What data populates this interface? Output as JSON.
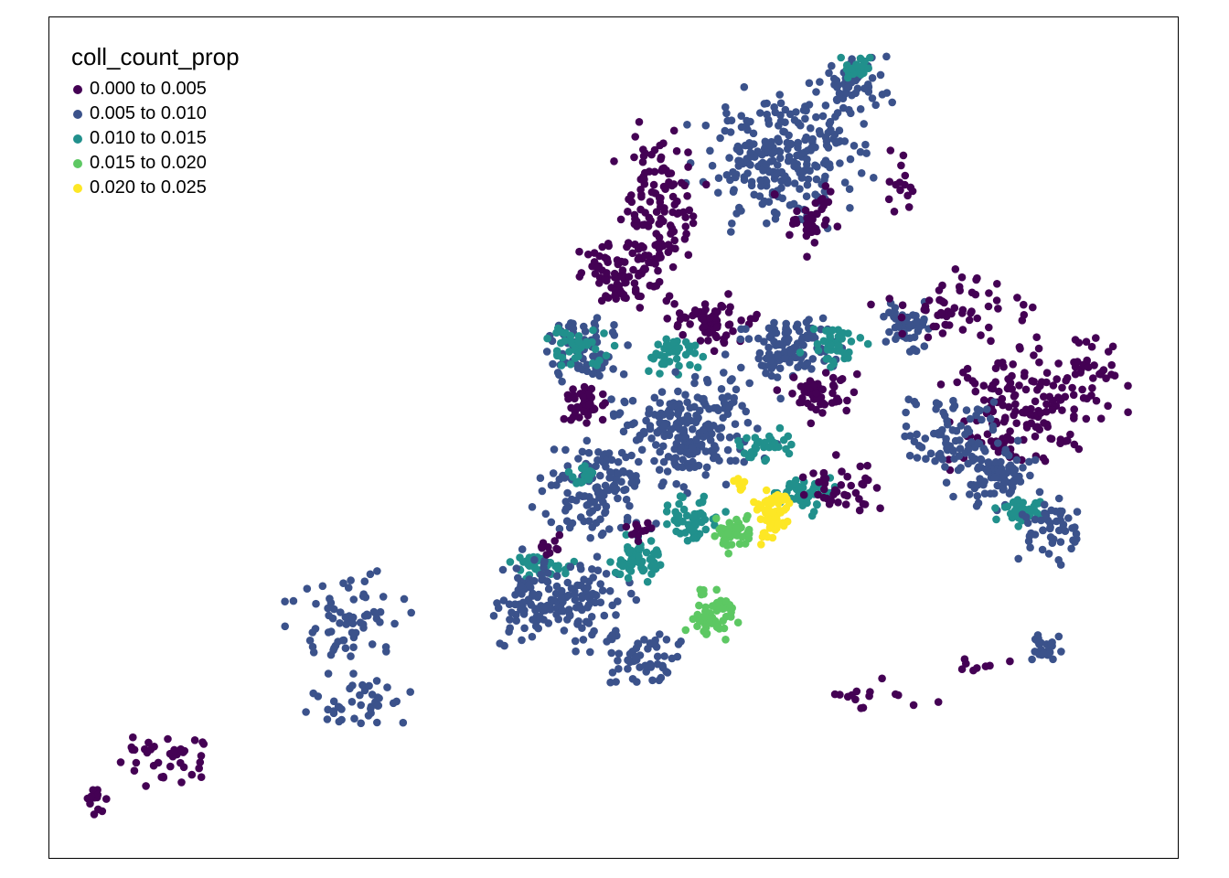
{
  "legend": {
    "title": "coll_count_prop",
    "items": [
      {
        "label": "0.000 to 0.005",
        "color": "#440154"
      },
      {
        "label": "0.005 to 0.010",
        "color": "#3b528b"
      },
      {
        "label": "0.010 to 0.015",
        "color": "#21908c"
      },
      {
        "label": "0.015 to 0.020",
        "color": "#5dc863"
      },
      {
        "label": "0.020 to 0.025",
        "color": "#fde725"
      }
    ]
  }
}
